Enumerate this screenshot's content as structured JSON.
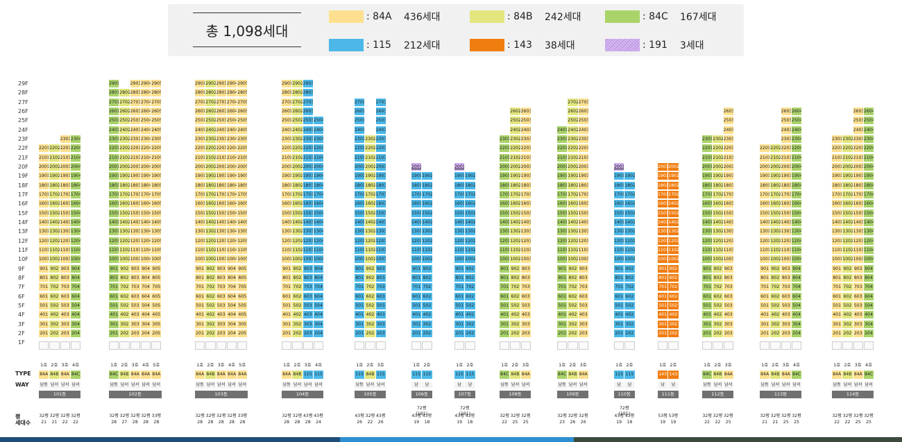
{
  "legend": {
    "total": "총 1,098세대",
    "items": [
      {
        "code": ": 84A",
        "count": "436세대",
        "color": "#fde08f",
        "pattern": false
      },
      {
        "code": ": 84B",
        "count": "242세대",
        "color": "#e3e67e",
        "pattern": false
      },
      {
        "code": ": 84C",
        "count": "167세대",
        "color": "#aad36a",
        "pattern": false
      },
      {
        "code": ": 115",
        "count": "212세대",
        "color": "#4bb8e8",
        "pattern": false
      },
      {
        "code": ": 143",
        "count": "38세대",
        "color": "#f07d10",
        "pattern": false
      },
      {
        "code": ": 191",
        "count": "3세대",
        "color": "#d7b9f0",
        "pattern": true
      }
    ]
  },
  "type_colors": {
    "84A": "#fde08f",
    "84B": "#e3e67e",
    "84C": "#aad36a",
    "115": "#4bb8e8",
    "143": "#f07d10",
    "191": "#d7b9f0"
  },
  "floors": [
    "29F",
    "28F",
    "27F",
    "26F",
    "25F",
    "24F",
    "23F",
    "22F",
    "21F",
    "20F",
    "19F",
    "18F",
    "17F",
    "16F",
    "15F",
    "14F",
    "13F",
    "12F",
    "11F",
    "10F",
    "9F",
    "8F",
    "7F",
    "6F",
    "5F",
    "4F",
    "3F",
    "2F",
    "1F"
  ],
  "row_labels": {
    "type": "TYPE",
    "way": "WAY",
    "pyeong": "평",
    "households": "세대수"
  },
  "buildings": [
    {
      "name": "101동",
      "lines": [
        {
          "label": "1호",
          "type": "84A",
          "way": "남동",
          "top": 22,
          "pyeong": "32평",
          "count": "21"
        },
        {
          "label": "2호",
          "type": "84B",
          "way": "남서",
          "top": 22,
          "pyeong": "32평",
          "count": "21"
        },
        {
          "label": "3호",
          "type": "84A",
          "way": "남서",
          "top": 23,
          "pyeong": "32평",
          "count": "22"
        },
        {
          "label": "4호",
          "type": "84C",
          "way": "남서",
          "top": 23,
          "pyeong": "32평",
          "count": "22"
        }
      ]
    },
    {
      "name": "102동",
      "lines": [
        {
          "label": "1호",
          "type": "84C",
          "way": "남동",
          "top": 29,
          "pyeong": "32평",
          "count": "28"
        },
        {
          "label": "2호",
          "type": "84B",
          "way": "남서",
          "top": 28,
          "pyeong": "32평",
          "count": "27"
        },
        {
          "label": "3호",
          "type": "84A",
          "way": "남서",
          "top": 29,
          "pyeong": "32평",
          "count": "28"
        },
        {
          "label": "4호",
          "type": "84A",
          "way": "남서",
          "top": 29,
          "pyeong": "32평",
          "count": "28"
        },
        {
          "label": "5호",
          "type": "84A",
          "way": "남서",
          "top": 29,
          "pyeong": "33평",
          "count": "28"
        }
      ]
    },
    {
      "name": "103동",
      "lines": [
        {
          "label": "1호",
          "type": "84A",
          "way": "남동",
          "top": 29,
          "pyeong": "32평",
          "count": "28"
        },
        {
          "label": "2호",
          "type": "84B",
          "way": "남서",
          "top": 29,
          "pyeong": "32평",
          "count": "28"
        },
        {
          "label": "3호",
          "type": "84A",
          "way": "남서",
          "top": 29,
          "pyeong": "32평",
          "count": "28"
        },
        {
          "label": "4호",
          "type": "84A",
          "way": "남서",
          "top": 29,
          "pyeong": "32평",
          "count": "28"
        },
        {
          "label": "5호",
          "type": "84A",
          "way": "남서",
          "top": 29,
          "pyeong": "33평",
          "count": "28"
        }
      ]
    },
    {
      "name": "104동",
      "lines": [
        {
          "label": "1호",
          "type": "84A",
          "way": "남동",
          "top": 29,
          "pyeong": "32평",
          "count": "28"
        },
        {
          "label": "2호",
          "type": "84B",
          "way": "남서",
          "top": 29,
          "pyeong": "32평",
          "count": "28"
        },
        {
          "label": "3호",
          "type": "115",
          "way": "남서",
          "top": 29,
          "pyeong": "43평",
          "count": "28"
        },
        {
          "label": "4호",
          "type": "115",
          "way": "남서",
          "top": 25,
          "pyeong": "43평",
          "count": "24"
        }
      ]
    },
    {
      "name": "105동",
      "lines": [
        {
          "label": "1호",
          "type": "115",
          "way": "남동",
          "top": 27,
          "pyeong": "43평",
          "count": "26"
        },
        {
          "label": "2호",
          "type": "84B",
          "way": "남서",
          "top": 23,
          "pyeong": "32평",
          "count": "22"
        },
        {
          "label": "3호",
          "type": "115",
          "way": "남서",
          "top": 27,
          "pyeong": "43평",
          "count": "26"
        }
      ]
    },
    {
      "name": "106동",
      "special": "72평(191)",
      "lines": [
        {
          "label": "1호",
          "type": "115",
          "way": "남",
          "top": 20,
          "pyeong": "43평",
          "count": "19",
          "penthouse": true
        },
        {
          "label": "2호",
          "type": "115",
          "way": "남",
          "top": 19,
          "pyeong": "43평",
          "count": "18"
        }
      ]
    },
    {
      "name": "107동",
      "special": "72평(191)",
      "lines": [
        {
          "label": "1호",
          "type": "115",
          "way": "남",
          "top": 20,
          "pyeong": "43평",
          "count": "19",
          "penthouse": true
        },
        {
          "label": "2호",
          "type": "115",
          "way": "남",
          "top": 19,
          "pyeong": "43평",
          "count": "18"
        }
      ]
    },
    {
      "name": "108동",
      "lines": [
        {
          "label": "1호",
          "type": "84C",
          "way": "남동",
          "top": 23,
          "pyeong": "32평",
          "count": "22"
        },
        {
          "label": "2호",
          "type": "84B",
          "way": "남서",
          "top": 26,
          "pyeong": "32평",
          "count": "25"
        },
        {
          "label": "3호",
          "type": "84A",
          "way": "남서",
          "top": 26,
          "pyeong": "32평",
          "count": "25"
        }
      ]
    },
    {
      "name": "109동",
      "lines": [
        {
          "label": "1호",
          "type": "84C",
          "way": "남동",
          "top": 24,
          "pyeong": "32평",
          "count": "23"
        },
        {
          "label": "2호",
          "type": "84B",
          "way": "남서",
          "top": 27,
          "pyeong": "32평",
          "count": "26"
        },
        {
          "label": "3호",
          "type": "84A",
          "way": "남서",
          "top": 27,
          "pyeong": "32평",
          "count": "26"
        }
      ]
    },
    {
      "name": "110동",
      "special": "72평(191)",
      "lines": [
        {
          "label": "1호",
          "type": "115",
          "way": "남",
          "top": 20,
          "pyeong": "43평",
          "count": "19",
          "penthouse": true
        },
        {
          "label": "2호",
          "type": "115",
          "way": "남",
          "top": 19,
          "pyeong": "43평",
          "count": "18"
        }
      ]
    },
    {
      "name": "111동",
      "lines": [
        {
          "label": "1호",
          "type": "143",
          "way": "남",
          "top": 20,
          "pyeong": "53평",
          "count": "19"
        },
        {
          "label": "2호",
          "type": "143",
          "way": "남",
          "top": 20,
          "pyeong": "53평",
          "count": "19"
        }
      ]
    },
    {
      "name": "112동",
      "lines": [
        {
          "label": "1호",
          "type": "84C",
          "way": "남동",
          "top": 23,
          "pyeong": "32평",
          "count": "22"
        },
        {
          "label": "2호",
          "type": "84B",
          "way": "남서",
          "top": 23,
          "pyeong": "32평",
          "count": "22"
        },
        {
          "label": "3호",
          "type": "84A",
          "way": "남서",
          "top": 26,
          "pyeong": "32평",
          "count": "25"
        }
      ]
    },
    {
      "name": "113동",
      "lines": [
        {
          "label": "1호",
          "type": "84A",
          "way": "남동",
          "top": 22,
          "pyeong": "32평",
          "count": "21"
        },
        {
          "label": "2호",
          "type": "84B",
          "way": "남서",
          "top": 22,
          "pyeong": "32평",
          "count": "21"
        },
        {
          "label": "3호",
          "type": "84A",
          "way": "남서",
          "top": 26,
          "pyeong": "32평",
          "count": "25"
        },
        {
          "label": "4호",
          "type": "84C",
          "way": "남서",
          "top": 26,
          "pyeong": "32평",
          "count": "25"
        }
      ]
    },
    {
      "name": "114동",
      "lines": [
        {
          "label": "1호",
          "type": "84A",
          "way": "남동",
          "top": 23,
          "pyeong": "32평",
          "count": "22"
        },
        {
          "label": "2호",
          "type": "84B",
          "way": "남서",
          "top": 23,
          "pyeong": "32평",
          "count": "22"
        },
        {
          "label": "3호",
          "type": "84A",
          "way": "남서",
          "top": 26,
          "pyeong": "32평",
          "count": "25"
        },
        {
          "label": "4호",
          "type": "84C",
          "way": "남서",
          "top": 26,
          "pyeong": "32평",
          "count": "25"
        }
      ]
    }
  ],
  "footer_colors": [
    "#1f4e79",
    "#2b8fd1",
    "#3b4a3a"
  ]
}
